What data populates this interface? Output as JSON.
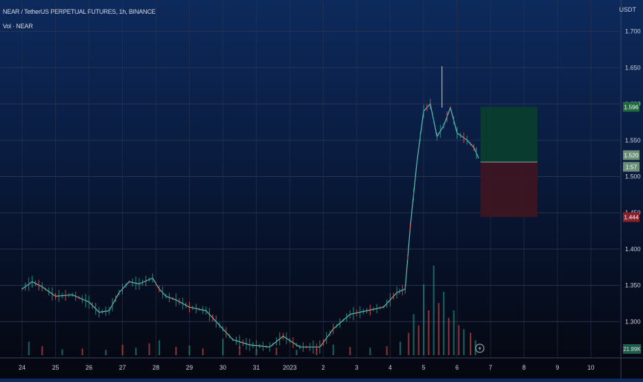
{
  "header": {
    "title": "NEAR / TetherUS PERPETUAL FUTURES, 1h, BINANCE",
    "volume_label": "Vol · NEAR",
    "currency": "USDT"
  },
  "colors": {
    "up": "#26a69a",
    "down": "#ef5350",
    "grid": "#2a3550",
    "profit_zone": "#0b3d2e",
    "loss_zone": "#3c1522",
    "axis_text": "#c9d1dc"
  },
  "chart_data": {
    "type": "candlestick",
    "symbol": "NEAR/USDT",
    "timeframe": "1h",
    "ylim": [
      1.25,
      1.73
    ],
    "y_ticks": [
      1.3,
      1.35,
      1.4,
      1.45,
      1.5,
      1.55,
      1.6,
      1.65,
      1.7
    ],
    "y_tick_labels": [
      "1.300",
      "1.350",
      "1.400",
      "1.450",
      "1.500",
      "1.550",
      "1.600",
      "1.650",
      "1.700"
    ],
    "x_tick_labels": [
      "24",
      "25",
      "26",
      "27",
      "28",
      "29",
      "30",
      "31",
      "2023",
      "2",
      "3",
      "4",
      "5",
      "6",
      "7",
      "8",
      "9",
      "10"
    ],
    "price_series": [
      {
        "t": 0,
        "v": 1.345
      },
      {
        "t": 0.3,
        "v": 1.355
      },
      {
        "t": 0.6,
        "v": 1.348
      },
      {
        "t": 1.0,
        "v": 1.335
      },
      {
        "t": 1.5,
        "v": 1.337
      },
      {
        "t": 2.0,
        "v": 1.327
      },
      {
        "t": 2.3,
        "v": 1.313
      },
      {
        "t": 2.6,
        "v": 1.315
      },
      {
        "t": 2.9,
        "v": 1.34
      },
      {
        "t": 3.2,
        "v": 1.355
      },
      {
        "t": 3.5,
        "v": 1.352
      },
      {
        "t": 3.9,
        "v": 1.36
      },
      {
        "t": 4.1,
        "v": 1.345
      },
      {
        "t": 4.3,
        "v": 1.335
      },
      {
        "t": 4.6,
        "v": 1.33
      },
      {
        "t": 5.0,
        "v": 1.32
      },
      {
        "t": 5.5,
        "v": 1.315
      },
      {
        "t": 6.0,
        "v": 1.29
      },
      {
        "t": 6.3,
        "v": 1.275
      },
      {
        "t": 6.8,
        "v": 1.268
      },
      {
        "t": 7.4,
        "v": 1.265
      },
      {
        "t": 7.8,
        "v": 1.28
      },
      {
        "t": 8.3,
        "v": 1.265
      },
      {
        "t": 8.9,
        "v": 1.265
      },
      {
        "t": 9.3,
        "v": 1.29
      },
      {
        "t": 9.8,
        "v": 1.31
      },
      {
        "t": 10.3,
        "v": 1.315
      },
      {
        "t": 10.8,
        "v": 1.32
      },
      {
        "t": 11.2,
        "v": 1.34
      },
      {
        "t": 11.45,
        "v": 1.345
      },
      {
        "t": 11.6,
        "v": 1.43
      },
      {
        "t": 11.8,
        "v": 1.52
      },
      {
        "t": 12.0,
        "v": 1.59
      },
      {
        "t": 12.2,
        "v": 1.6
      },
      {
        "t": 12.4,
        "v": 1.555
      },
      {
        "t": 12.6,
        "v": 1.57
      },
      {
        "t": 12.8,
        "v": 1.595
      },
      {
        "t": 13.0,
        "v": 1.56
      },
      {
        "t": 13.3,
        "v": 1.55
      },
      {
        "t": 13.5,
        "v": 1.54
      },
      {
        "t": 13.65,
        "v": 1.525
      }
    ],
    "max_high": {
      "t": 12.55,
      "v": 1.652
    },
    "position": {
      "entry": 1.52,
      "target": 1.596,
      "stop": 1.444,
      "target_label": "1.596",
      "entry_label": "1.520",
      "entry_sub_label": "1:57",
      "stop_label": "1.444",
      "t_start": 13.7,
      "t_end": 15.4
    },
    "volume_axis_label": "21.99K",
    "volume": [
      {
        "t": 0.2,
        "v": 18
      },
      {
        "t": 0.6,
        "v": 12
      },
      {
        "t": 1.2,
        "v": 8
      },
      {
        "t": 1.8,
        "v": 9
      },
      {
        "t": 2.5,
        "v": 7
      },
      {
        "t": 3.0,
        "v": 14
      },
      {
        "t": 3.4,
        "v": 10
      },
      {
        "t": 3.8,
        "v": 16
      },
      {
        "t": 4.1,
        "v": 20
      },
      {
        "t": 4.6,
        "v": 11
      },
      {
        "t": 5.0,
        "v": 13
      },
      {
        "t": 5.4,
        "v": 9
      },
      {
        "t": 6.0,
        "v": 22
      },
      {
        "t": 6.5,
        "v": 12
      },
      {
        "t": 7.0,
        "v": 8
      },
      {
        "t": 7.6,
        "v": 10
      },
      {
        "t": 8.2,
        "v": 7
      },
      {
        "t": 8.8,
        "v": 9
      },
      {
        "t": 9.3,
        "v": 14
      },
      {
        "t": 9.8,
        "v": 11
      },
      {
        "t": 10.4,
        "v": 10
      },
      {
        "t": 10.9,
        "v": 12
      },
      {
        "t": 11.3,
        "v": 18
      },
      {
        "t": 11.55,
        "v": 30
      },
      {
        "t": 11.7,
        "v": 55
      },
      {
        "t": 11.85,
        "v": 40
      },
      {
        "t": 12.0,
        "v": 95
      },
      {
        "t": 12.15,
        "v": 60
      },
      {
        "t": 12.3,
        "v": 120
      },
      {
        "t": 12.45,
        "v": 70
      },
      {
        "t": 12.6,
        "v": 85
      },
      {
        "t": 12.75,
        "v": 50
      },
      {
        "t": 12.9,
        "v": 60
      },
      {
        "t": 13.05,
        "v": 40
      },
      {
        "t": 13.2,
        "v": 35
      },
      {
        "t": 13.4,
        "v": 30
      },
      {
        "t": 13.55,
        "v": 20
      }
    ]
  }
}
